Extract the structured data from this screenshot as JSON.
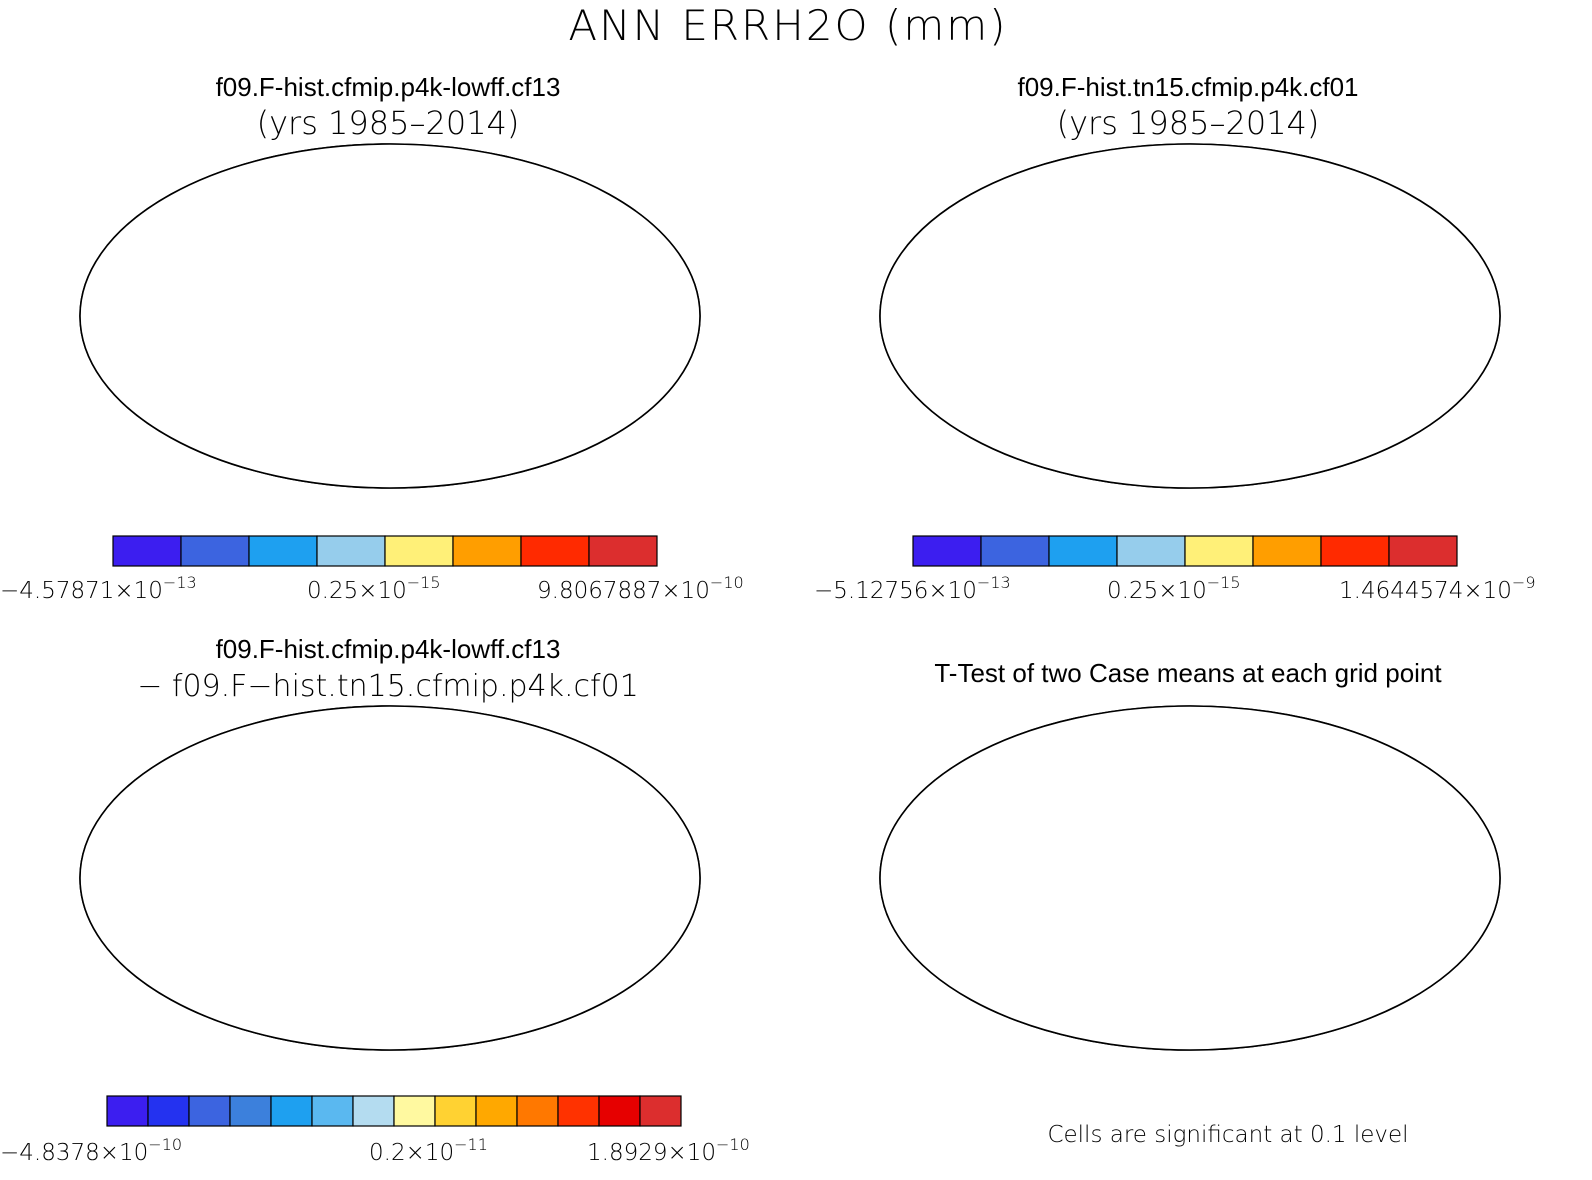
{
  "figure": {
    "title": "ANN ERRH2O (mm)"
  },
  "panels": [
    {
      "id": "case1",
      "title_line1": "f09.F-hist.cfmip.p4k-lowff.cf13",
      "title_line2": "(yrs 1985–2014)",
      "colorbar": {
        "colors": [
          "#3c1ef0",
          "#3c64e0",
          "#1ea0f0",
          "#96cdec",
          "#fff078",
          "#ff9e00",
          "#ff2a00",
          "#dc2e2e"
        ],
        "label_min": "−4.57871×10",
        "label_min_exp": "−13",
        "label_mid": "0.25×10",
        "label_mid_exp": "−15",
        "label_max": "9.8067887×10",
        "label_max_exp": "−10"
      },
      "land_base": "#3ca5ea"
    },
    {
      "id": "case2",
      "title_line1": "f09.F-hist.tn15.cfmip.p4k.cf01",
      "title_line2": "(yrs 1985–2014)",
      "colorbar": {
        "colors": [
          "#3c1ef0",
          "#3c64e0",
          "#1ea0f0",
          "#96cdec",
          "#fff078",
          "#ff9e00",
          "#ff2a00",
          "#dc2e2e"
        ],
        "label_min": "−5.12756×10",
        "label_min_exp": "−13",
        "label_mid": "0.25×10",
        "label_mid_exp": "−15",
        "label_max": "1.4644574×10",
        "label_max_exp": "−9"
      },
      "land_base": "#3ca5ea"
    },
    {
      "id": "diff",
      "title_line1": "f09.F-hist.cfmip.p4k-lowff.cf13",
      "title_line2": "− f09.F−hist.tn15.cfmip.p4k.cf01",
      "colorbar": {
        "colors": [
          "#3c1ef0",
          "#2432f0",
          "#3c64e0",
          "#3c80dc",
          "#1ea0f0",
          "#5ab8f0",
          "#b4dcf0",
          "#fff9a0",
          "#ffd232",
          "#ffa800",
          "#ff7800",
          "#ff3200",
          "#e60000",
          "#dc2e2e"
        ],
        "label_min": "−4.8378×10",
        "label_min_exp": "−10",
        "label_mid": "0.2×10",
        "label_mid_exp": "−11",
        "label_max": "1.8929×10",
        "label_max_exp": "−10"
      },
      "land_base": "#c6e2e6"
    },
    {
      "id": "ttest",
      "title_line1": "T-Test of two Case means at each grid point",
      "footnote": "Cells are significant at 0.1 level",
      "land_base": "#ffffff"
    }
  ]
}
